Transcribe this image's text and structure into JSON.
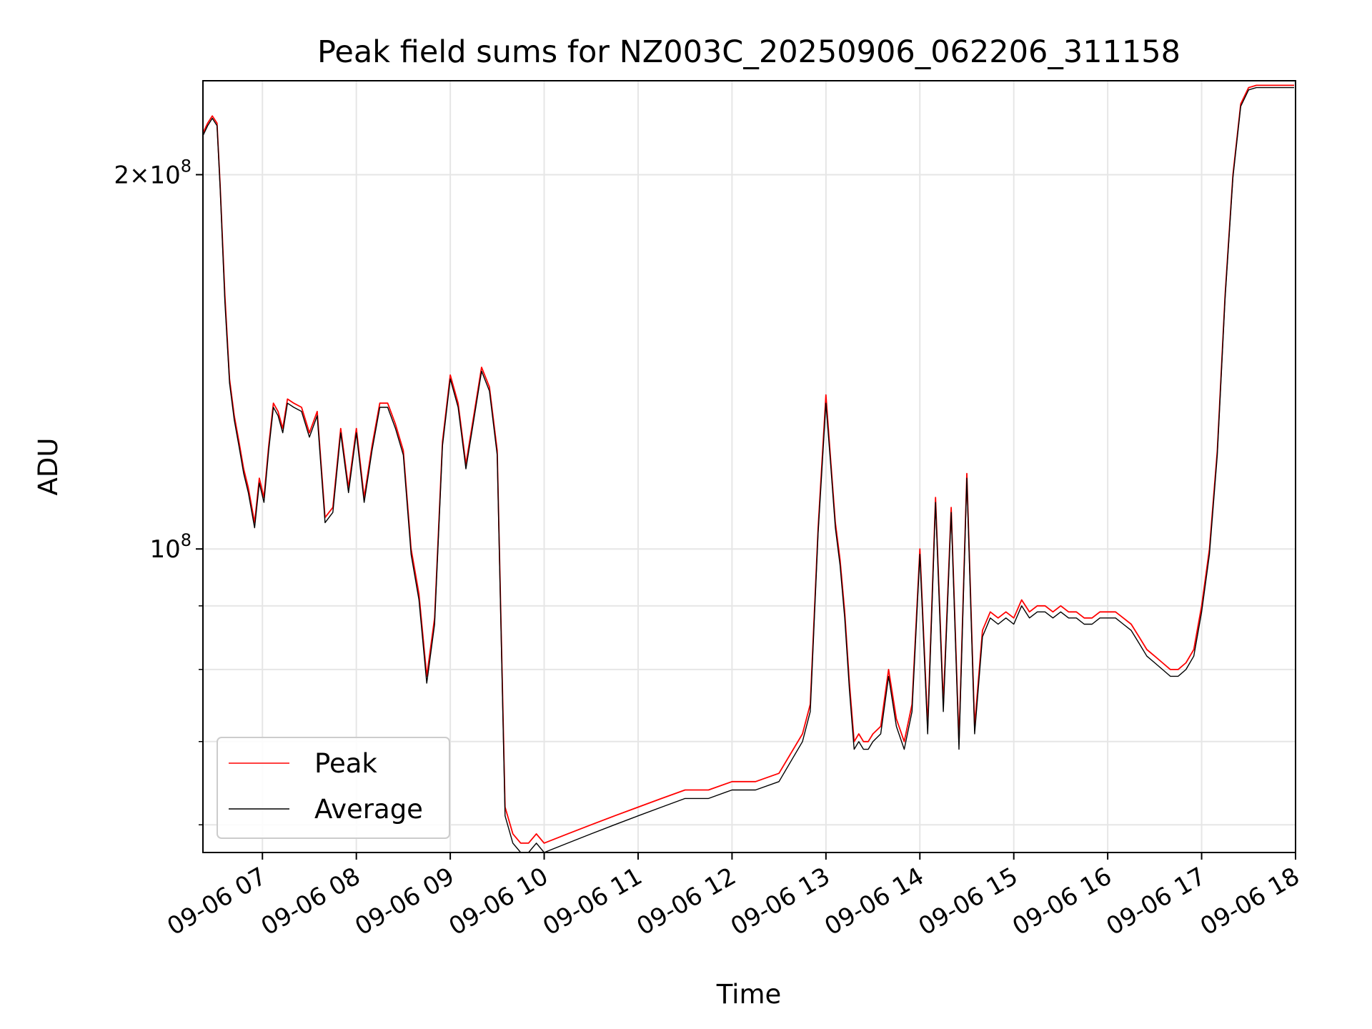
{
  "chart_data": {
    "type": "line",
    "title": "Peak field sums for NZ003C_20250906_062206_311158",
    "xlabel": "Time",
    "ylabel": "ADU",
    "yscale": "log",
    "xlim": [
      "2025-09-06 06:22",
      "2025-09-06 18:00"
    ],
    "ylim": [
      57000000,
      238000000
    ],
    "grid": true,
    "legend": "lower-left",
    "x_ticks": [
      "09-06 07",
      "09-06 08",
      "09-06 09",
      "09-06 10",
      "09-06 11",
      "09-06 12",
      "09-06 13",
      "09-06 14",
      "09-06 15",
      "09-06 16",
      "09-06 17",
      "09-06 18"
    ],
    "y_ticks": [
      {
        "value": 200000000,
        "base": "2×10",
        "exp": "8"
      },
      {
        "value": 100000000,
        "base": "10",
        "exp": "8"
      }
    ],
    "x": [
      "06:22",
      "06:25",
      "06:28",
      "06:31",
      "06:33",
      "06:36",
      "06:39",
      "06:42",
      "06:45",
      "06:48",
      "06:51",
      "06:55",
      "06:58",
      "07:01",
      "07:04",
      "07:07",
      "07:10",
      "07:13",
      "07:16",
      "07:20",
      "07:25",
      "07:30",
      "07:35",
      "07:40",
      "07:45",
      "07:50",
      "07:55",
      "08:00",
      "08:05",
      "08:10",
      "08:15",
      "08:20",
      "08:25",
      "08:30",
      "08:35",
      "08:40",
      "08:45",
      "08:50",
      "08:55",
      "09:00",
      "09:05",
      "09:10",
      "09:15",
      "09:20",
      "09:25",
      "09:30",
      "09:35",
      "09:40",
      "09:45",
      "09:50",
      "09:55",
      "10:00",
      "10:15",
      "10:30",
      "10:45",
      "11:00",
      "11:15",
      "11:30",
      "11:45",
      "12:00",
      "12:15",
      "12:30",
      "12:45",
      "12:50",
      "12:55",
      "13:00",
      "13:03",
      "13:06",
      "13:09",
      "13:12",
      "13:15",
      "13:18",
      "13:21",
      "13:24",
      "13:27",
      "13:30",
      "13:35",
      "13:40",
      "13:45",
      "13:50",
      "13:55",
      "14:00",
      "14:05",
      "14:10",
      "14:15",
      "14:20",
      "14:25",
      "14:30",
      "14:35",
      "14:40",
      "14:45",
      "14:50",
      "14:55",
      "15:00",
      "15:05",
      "15:10",
      "15:15",
      "15:20",
      "15:25",
      "15:30",
      "15:35",
      "15:40",
      "15:45",
      "15:50",
      "15:55",
      "16:00",
      "16:05",
      "16:10",
      "16:15",
      "16:20",
      "16:25",
      "16:30",
      "16:35",
      "16:40",
      "16:45",
      "16:50",
      "16:55",
      "17:00",
      "17:05",
      "17:10",
      "17:15",
      "17:20",
      "17:25",
      "17:30",
      "17:35",
      "17:40",
      "17:45",
      "17:50",
      "17:55",
      "18:00"
    ],
    "series": [
      {
        "name": "Peak",
        "color": "#ff0000",
        "values": [
          216,
          220,
          223,
          220,
          196,
          160,
          137,
          128,
          122,
          116,
          112,
          105,
          114,
          110,
          121,
          131,
          129,
          125,
          132,
          131,
          130,
          124,
          129,
          106,
          108,
          125,
          112,
          125,
          110,
          121,
          131,
          131,
          126,
          120,
          100,
          92,
          79,
          88,
          122,
          138,
          131,
          117,
          128,
          140,
          135,
          120,
          62,
          59,
          58,
          58,
          59,
          58,
          59,
          60,
          61,
          62,
          63,
          64,
          64,
          65,
          65,
          66,
          71,
          75,
          104,
          133,
          118,
          105,
          98,
          89,
          78,
          70,
          71,
          70,
          70,
          71,
          72,
          80,
          73,
          70,
          75,
          100,
          72,
          110,
          75,
          108,
          70,
          115,
          72,
          86,
          89,
          88,
          89,
          88,
          91,
          89,
          90,
          90,
          89,
          90,
          89,
          89,
          88,
          88,
          89,
          89,
          89,
          88,
          87,
          85,
          83,
          82,
          81,
          80,
          80,
          81,
          83,
          90,
          100,
          120,
          160,
          200,
          228,
          235,
          236,
          236,
          236,
          236,
          236,
          236
        ]
      },
      {
        "name": "Average",
        "color": "#000000",
        "values": [
          215,
          219,
          222,
          219,
          195,
          158,
          136,
          127,
          121,
          115,
          111,
          104,
          113,
          109,
          120,
          130,
          128,
          124,
          131,
          130,
          129,
          123,
          128,
          105,
          107,
          124,
          111,
          124,
          109,
          120,
          130,
          130,
          125,
          119,
          99,
          91,
          78,
          87,
          121,
          137,
          130,
          116,
          127,
          139,
          134,
          119,
          61,
          58,
          57,
          57,
          58,
          57,
          58,
          59,
          60,
          61,
          62,
          63,
          63,
          64,
          64,
          65,
          70,
          74,
          103,
          131,
          117,
          104,
          97,
          88,
          77,
          69,
          70,
          69,
          69,
          70,
          71,
          79,
          72,
          69,
          74,
          99,
          71,
          109,
          74,
          107,
          69,
          114,
          71,
          85,
          88,
          87,
          88,
          87,
          90,
          88,
          89,
          89,
          88,
          89,
          88,
          88,
          87,
          87,
          88,
          88,
          88,
          87,
          86,
          84,
          82,
          81,
          80,
          79,
          79,
          80,
          82,
          89,
          99,
          119,
          159,
          199,
          227,
          234,
          235,
          235,
          235,
          235,
          235,
          235
        ]
      }
    ],
    "value_unit_scale": 1000000
  }
}
